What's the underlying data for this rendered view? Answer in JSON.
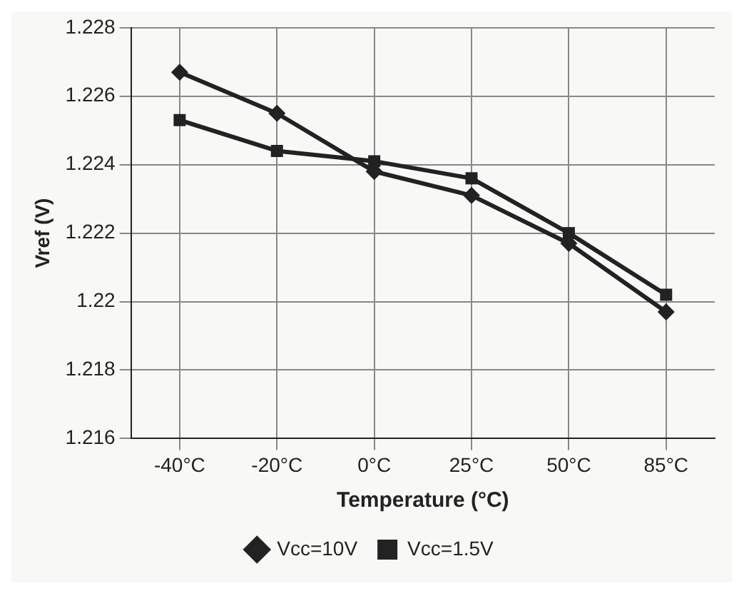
{
  "chart_data": {
    "type": "line",
    "xlabel": "Temperature (°C)",
    "ylabel": "Vref (V)",
    "categories": [
      "-40°C",
      "-20°C",
      "0°C",
      "25°C",
      "50°C",
      "85°C"
    ],
    "series": [
      {
        "name": "Vcc=10V",
        "color": "#222222",
        "marker": "diamond",
        "values": [
          1.2267,
          1.2255,
          1.2238,
          1.2231,
          1.2217,
          1.2197
        ]
      },
      {
        "name": "Vcc=1.5V",
        "color": "#222222",
        "marker": "square",
        "values": [
          1.2253,
          1.2244,
          1.2241,
          1.2236,
          1.222,
          1.2202
        ]
      }
    ],
    "ylim": [
      1.216,
      1.228
    ],
    "yticks": [
      1.216,
      1.218,
      {
        "value": 1.22,
        "label": "1.22"
      },
      1.222,
      1.224,
      1.226,
      1.228
    ],
    "grid": true,
    "legend": "bottom",
    "line_style": "solid"
  }
}
